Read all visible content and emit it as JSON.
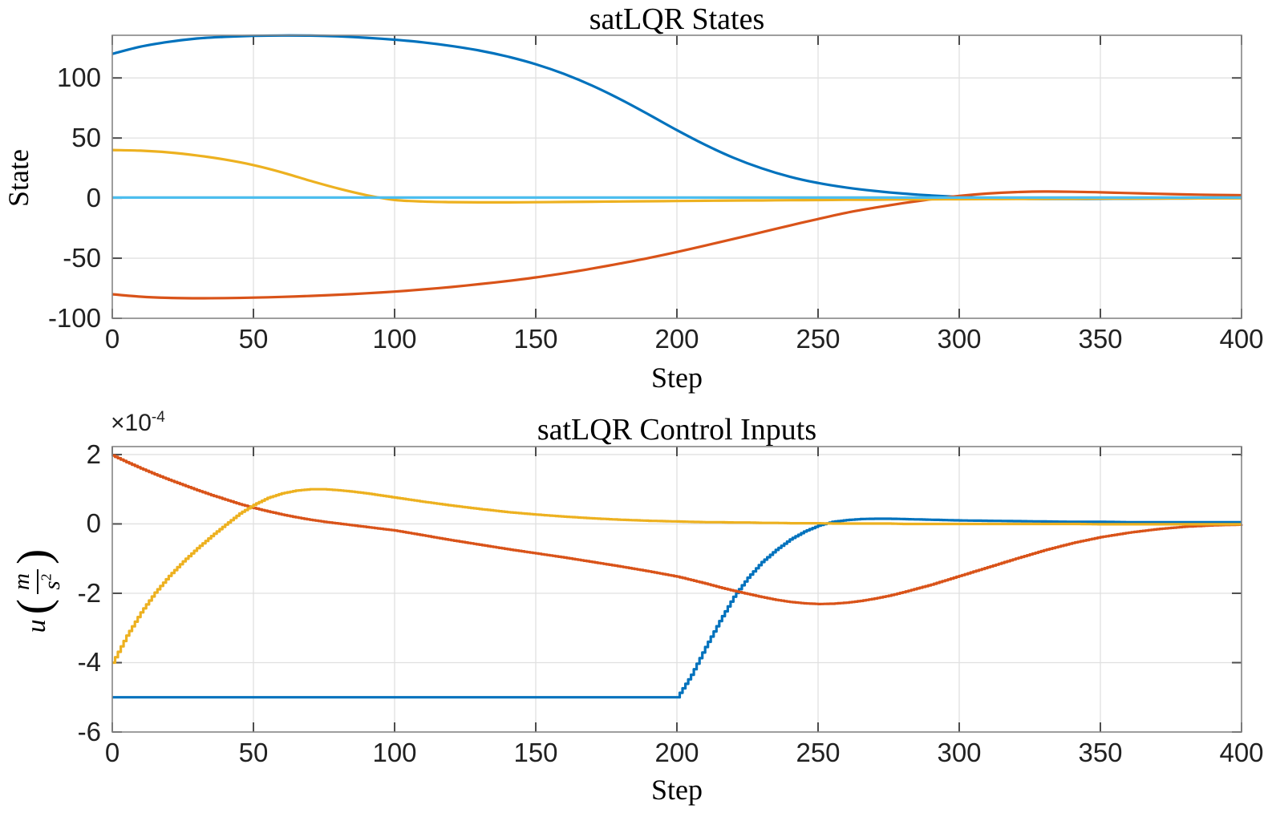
{
  "figure": {
    "background": "#ffffff",
    "axis_color": "#858585",
    "tick_mark_color": "#4d4d4d",
    "grid_color": "#e0e0e0",
    "tick_label_color": "#212121",
    "text_color": "#000000"
  },
  "chart_data": [
    {
      "type": "line",
      "title": "satLQR States",
      "xlabel": "Step",
      "ylabel": "State",
      "xlim": [
        0,
        400
      ],
      "ylim": [
        -100,
        135.5
      ],
      "xticks": [
        0,
        50,
        100,
        150,
        200,
        250,
        300,
        350,
        400
      ],
      "yticks": [
        100,
        50,
        0,
        -50,
        -100
      ],
      "grid": true,
      "legend": "none",
      "line_style": "smooth",
      "series": [
        {
          "name": "state-x1-blue",
          "color": "#0072BD",
          "x": [
            0,
            10,
            20,
            30,
            40,
            50,
            60,
            70,
            80,
            90,
            100,
            110,
            120,
            130,
            140,
            150,
            160,
            170,
            180,
            190,
            200,
            210,
            220,
            230,
            240,
            250,
            260,
            270,
            280,
            290,
            300,
            310,
            320,
            330,
            340,
            350,
            360,
            370,
            380,
            390,
            400
          ],
          "y": [
            120,
            126,
            130,
            132.8,
            134.2,
            135,
            135.3,
            135.2,
            134.6,
            133.4,
            131.8,
            129.6,
            126.6,
            122.8,
            117.8,
            111.4,
            103.4,
            93.6,
            82.2,
            69.6,
            56.6,
            44.4,
            33.6,
            24.8,
            17.8,
            12.6,
            8.8,
            6,
            3.8,
            2.2,
            1,
            0.2,
            -0.4,
            -0.7,
            -0.7,
            -0.6,
            -0.5,
            -0.35,
            -0.25,
            -0.1,
            0
          ]
        },
        {
          "name": "state-x2-orange",
          "color": "#D95319",
          "x": [
            0,
            10,
            20,
            30,
            40,
            50,
            60,
            70,
            80,
            90,
            100,
            110,
            120,
            130,
            140,
            150,
            160,
            170,
            180,
            190,
            200,
            210,
            220,
            230,
            240,
            250,
            260,
            270,
            280,
            290,
            300,
            310,
            320,
            330,
            340,
            350,
            360,
            370,
            380,
            390,
            400
          ],
          "y": [
            -80,
            -82,
            -83,
            -83.3,
            -83.2,
            -82.8,
            -82.2,
            -81.4,
            -80.4,
            -79.2,
            -77.8,
            -76,
            -74,
            -71.6,
            -69,
            -66,
            -62.5,
            -58.6,
            -54.4,
            -49.8,
            -44.8,
            -39.5,
            -34,
            -28.4,
            -22.8,
            -17.4,
            -12.2,
            -8,
            -4.2,
            -1,
            1.8,
            3.8,
            5,
            5.5,
            5.3,
            4.8,
            4.2,
            3.6,
            3.1,
            2.7,
            2.4
          ]
        },
        {
          "name": "state-x3-yellow",
          "color": "#EDB120",
          "x": [
            0,
            10,
            20,
            30,
            40,
            50,
            60,
            70,
            80,
            90,
            100,
            110,
            120,
            130,
            140,
            150,
            160,
            170,
            180,
            190,
            200,
            210,
            220,
            230,
            240,
            250,
            260,
            270,
            280,
            290,
            300,
            310,
            320,
            330,
            340,
            350,
            360,
            370,
            380,
            390,
            400
          ],
          "y": [
            40,
            39.5,
            38,
            35.5,
            32,
            27.5,
            21.5,
            14.5,
            8,
            2.5,
            -1.5,
            -2.8,
            -3.3,
            -3.5,
            -3.5,
            -3.4,
            -3.2,
            -3,
            -2.8,
            -2.6,
            -2.4,
            -2.2,
            -2,
            -1.9,
            -1.7,
            -1.6,
            -1.4,
            -1.3,
            -1.1,
            -1,
            -0.9,
            -0.8,
            -0.7,
            -0.6,
            -0.5,
            -0.4,
            -0.35,
            -0.3,
            -0.25,
            -0.2,
            -0.15
          ]
        },
        {
          "name": "state-x4-cyan",
          "color": "#4DBEEE",
          "x": [
            0,
            400
          ],
          "y": [
            0.5,
            0.5
          ]
        }
      ]
    },
    {
      "type": "line",
      "title": "satLQR Control Inputs",
      "xlabel": "Step",
      "ylabel": "u (m/s²)",
      "ylabel_parts": {
        "prefix": "u",
        "open": "(",
        "numerator": "m",
        "denominator": "s",
        "denominator_exp": "2",
        "close": ")"
      },
      "y_axis_multiplier": {
        "base": "×10",
        "exponent": "-4"
      },
      "unit_scale": "1e-4",
      "xlim": [
        0,
        400
      ],
      "ylim": [
        -6,
        2.23
      ],
      "xticks": [
        0,
        50,
        100,
        150,
        200,
        250,
        300,
        350,
        400
      ],
      "yticks": [
        2,
        0,
        -2,
        -4,
        -6
      ],
      "grid": true,
      "legend": "none",
      "line_style": "stairs",
      "series": [
        {
          "name": "u1-blue",
          "color": "#0072BD",
          "x": [
            0,
            5,
            10,
            15,
            20,
            25,
            30,
            35,
            40,
            45,
            50,
            55,
            60,
            65,
            70,
            75,
            80,
            85,
            90,
            95,
            100,
            110,
            120,
            130,
            140,
            150,
            160,
            170,
            180,
            190,
            200,
            205,
            210,
            215,
            220,
            225,
            230,
            235,
            240,
            245,
            250,
            255,
            260,
            265,
            270,
            275,
            280,
            290,
            300,
            310,
            320,
            330,
            340,
            350,
            360,
            370,
            380,
            390,
            400
          ],
          "y": [
            -5,
            -5,
            -5,
            -5,
            -5,
            -5,
            -5,
            -5,
            -5,
            -5,
            -5,
            -5,
            -5,
            -5,
            -5,
            -5,
            -5,
            -5,
            -5,
            -5,
            -5,
            -5,
            -5,
            -5,
            -5,
            -5,
            -5,
            -5,
            -5,
            -5,
            -5,
            -4.35,
            -3.55,
            -2.8,
            -2.1,
            -1.55,
            -1.1,
            -0.75,
            -0.45,
            -0.22,
            -0.05,
            0.06,
            0.11,
            0.14,
            0.15,
            0.15,
            0.14,
            0.12,
            0.1,
            0.09,
            0.08,
            0.07,
            0.06,
            0.06,
            0.05,
            0.05,
            0.05,
            0.05,
            0.05
          ]
        },
        {
          "name": "u2-orange",
          "color": "#D95319",
          "x": [
            0,
            5,
            10,
            15,
            20,
            25,
            30,
            35,
            40,
            45,
            50,
            55,
            60,
            65,
            70,
            75,
            80,
            85,
            90,
            95,
            100,
            110,
            120,
            130,
            140,
            150,
            160,
            170,
            180,
            190,
            200,
            205,
            210,
            215,
            220,
            225,
            230,
            235,
            240,
            245,
            250,
            255,
            260,
            265,
            270,
            275,
            280,
            290,
            300,
            310,
            320,
            330,
            340,
            350,
            360,
            370,
            380,
            390,
            400
          ],
          "y": [
            1.97,
            1.78,
            1.6,
            1.43,
            1.27,
            1.12,
            0.97,
            0.83,
            0.7,
            0.57,
            0.46,
            0.36,
            0.27,
            0.19,
            0.12,
            0.06,
            0.01,
            -0.04,
            -0.09,
            -0.14,
            -0.19,
            -0.33,
            -0.47,
            -0.6,
            -0.73,
            -0.85,
            -0.97,
            -1.1,
            -1.23,
            -1.37,
            -1.52,
            -1.62,
            -1.72,
            -1.83,
            -1.93,
            -2.02,
            -2.11,
            -2.19,
            -2.25,
            -2.29,
            -2.31,
            -2.3,
            -2.27,
            -2.22,
            -2.15,
            -2.07,
            -1.97,
            -1.75,
            -1.5,
            -1.25,
            -1,
            -0.76,
            -0.55,
            -0.38,
            -0.25,
            -0.15,
            -0.08,
            -0.04,
            -0.02
          ]
        },
        {
          "name": "u3-yellow",
          "color": "#EDB120",
          "x": [
            0,
            5,
            10,
            15,
            20,
            25,
            30,
            35,
            40,
            45,
            50,
            55,
            60,
            65,
            70,
            75,
            80,
            85,
            90,
            95,
            100,
            110,
            120,
            130,
            140,
            150,
            160,
            170,
            180,
            190,
            200,
            205,
            210,
            215,
            220,
            225,
            230,
            235,
            240,
            245,
            250,
            255,
            260,
            265,
            270,
            275,
            280,
            290,
            300,
            310,
            320,
            330,
            340,
            350,
            360,
            370,
            380,
            390,
            400
          ],
          "y": [
            -4,
            -3.22,
            -2.55,
            -1.98,
            -1.5,
            -1.08,
            -0.7,
            -0.35,
            -0.02,
            0.3,
            0.55,
            0.75,
            0.88,
            0.96,
            1,
            1,
            0.97,
            0.93,
            0.88,
            0.82,
            0.76,
            0.64,
            0.53,
            0.43,
            0.34,
            0.27,
            0.21,
            0.16,
            0.12,
            0.09,
            0.07,
            0.06,
            0.05,
            0.05,
            0.04,
            0.04,
            0.03,
            0.03,
            0.02,
            0.02,
            0.02,
            0.01,
            0.01,
            0.01,
            0.01,
            0.01,
            0,
            0,
            0,
            0,
            0,
            0,
            0,
            -0.01,
            -0.01,
            -0.01,
            -0.01,
            -0.01,
            -0.01
          ]
        }
      ]
    }
  ]
}
